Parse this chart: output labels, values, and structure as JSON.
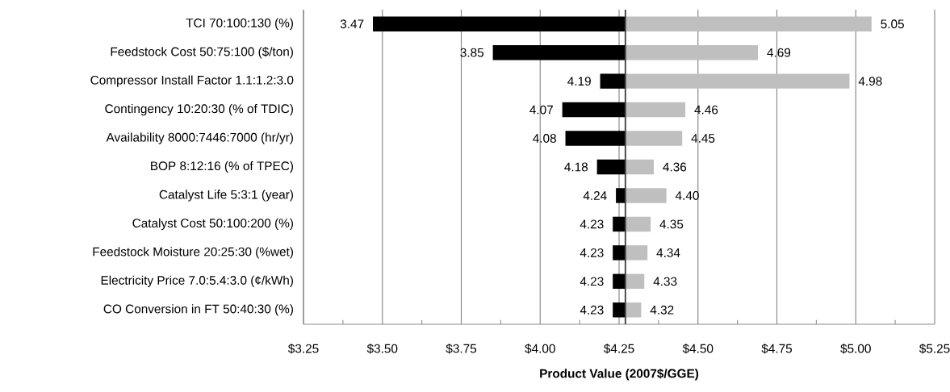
{
  "chart_data": {
    "type": "bar",
    "orientation": "horizontal",
    "categories": [
      "TCI 70:100:130 (%)",
      "Feedstock Cost 50:75:100 ($/ton)",
      "Compressor Install Factor 1.1:1.2:3.0",
      "Contingency 10:20:30 (% of TDIC)",
      "Availability 8000:7446:7000 (hr/yr)",
      "BOP 8:12:16 (% of TPEC)",
      "Catalyst Life 5:3:1 (year)",
      "Catalyst Cost 50:100:200 (%)",
      "Feedstock Moisture 20:25:30 (%wet)",
      "Electricity Price 7.0:5.4:3.0 (¢/kWh)",
      "CO Conversion in FT 50:40:30 (%)"
    ],
    "series": [
      {
        "color": "#000000",
        "base": [
          4.27,
          4.27,
          4.27,
          4.27,
          4.27,
          4.27,
          4.27,
          4.27,
          4.27,
          4.27,
          4.27
        ],
        "values": [
          -0.8,
          -0.42,
          -0.08,
          -0.2,
          -0.19,
          -0.09,
          -0.03,
          -0.04,
          -0.04,
          -0.04,
          -0.04
        ],
        "value_labels": [
          "3.47",
          "3.85",
          "4.19",
          "4.07",
          "4.08",
          "4.18",
          "4.24",
          "4.23",
          "4.23",
          "4.23",
          "4.23"
        ]
      },
      {
        "color": "#bfbfbf",
        "base": [
          4.27,
          4.27,
          4.27,
          4.27,
          4.27,
          4.27,
          4.27,
          4.27,
          4.27,
          4.27,
          4.27
        ],
        "values": [
          0.78,
          0.42,
          0.71,
          0.19,
          0.18,
          0.09,
          0.13,
          0.08,
          0.07,
          0.06,
          0.05
        ],
        "value_labels": [
          "5.05",
          "4.69",
          "4.98",
          "4.46",
          "4.45",
          "4.36",
          "4.40",
          "4.35",
          "4.34",
          "4.33",
          "4.32"
        ]
      }
    ],
    "xlim": [
      3.25,
      5.25
    ],
    "xticks": [
      {
        "value": 3.25,
        "label": "$3.25"
      },
      {
        "value": 3.5,
        "label": "$3.50"
      },
      {
        "value": 3.75,
        "label": "$3.75"
      },
      {
        "value": 4.0,
        "label": "$4.00"
      },
      {
        "value": 4.25,
        "label": "$4.25"
      },
      {
        "value": 4.5,
        "label": "$4.50"
      },
      {
        "value": 4.75,
        "label": "$4.75"
      },
      {
        "value": 5.0,
        "label": "$5.00"
      },
      {
        "value": 5.25,
        "label": "$5.25"
      }
    ],
    "xlabel": "Product Value (2007$/GGE)",
    "grid": "x",
    "ref_lines": [
      {
        "axis": "x",
        "value": 4.27,
        "color": "#404040"
      }
    ]
  }
}
